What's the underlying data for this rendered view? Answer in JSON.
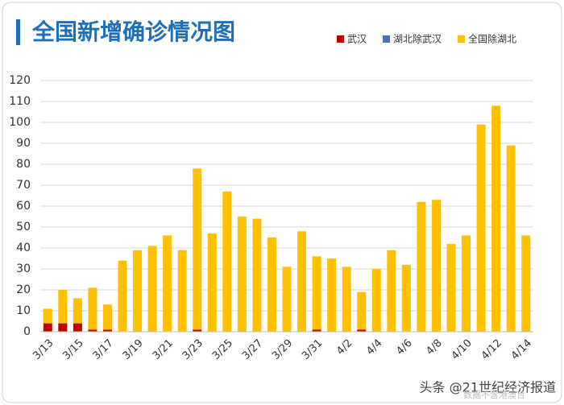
{
  "chart_data": {
    "type": "stacked_bar",
    "title": "全国新增确诊情况图",
    "categories": [
      "3/13",
      null,
      "3/15",
      null,
      "3/17",
      null,
      "3/19",
      null,
      "3/21",
      null,
      "3/23",
      null,
      "3/25",
      null,
      "3/27",
      null,
      "3/29",
      null,
      "3/31",
      null,
      "4/2",
      null,
      "4/4",
      null,
      "4/6",
      null,
      "4/8",
      null,
      "4/10",
      null,
      "4/12",
      null,
      "4/14"
    ],
    "series": [
      {
        "name": "武汉",
        "color": "#c00000",
        "values": [
          4,
          4,
          4,
          1,
          1,
          0,
          0,
          0,
          0,
          0,
          1,
          0,
          0,
          0,
          0,
          0,
          0,
          0,
          1,
          0,
          0,
          1,
          0,
          0,
          0,
          0,
          0,
          0,
          0,
          0,
          0,
          0,
          0
        ]
      },
      {
        "name": "湖北除武汉",
        "color": "#4472c4",
        "values": [
          0,
          0,
          0,
          0,
          0,
          0,
          0,
          0,
          0,
          0,
          0,
          0,
          0,
          0,
          0,
          0,
          0,
          0,
          0,
          0,
          0,
          0,
          0,
          0,
          0,
          0,
          0,
          0,
          0,
          0,
          0,
          0,
          0
        ]
      },
      {
        "name": "全国除湖北",
        "color": "#ffc000",
        "values": [
          7,
          16,
          12,
          20,
          12,
          34,
          39,
          41,
          46,
          39,
          77,
          47,
          67,
          55,
          54,
          45,
          31,
          48,
          35,
          35,
          31,
          18,
          30,
          39,
          32,
          62,
          63,
          42,
          46,
          99,
          108,
          89,
          46
        ]
      }
    ],
    "ylim": [
      0,
      120
    ],
    "yticks": [
      0,
      10,
      20,
      30,
      40,
      50,
      60,
      70,
      80,
      90,
      100,
      110,
      120
    ],
    "grid": true,
    "legend": "top-right",
    "annotations": [
      "头条 @21世纪经济报道",
      "数据不含港澳台"
    ]
  }
}
